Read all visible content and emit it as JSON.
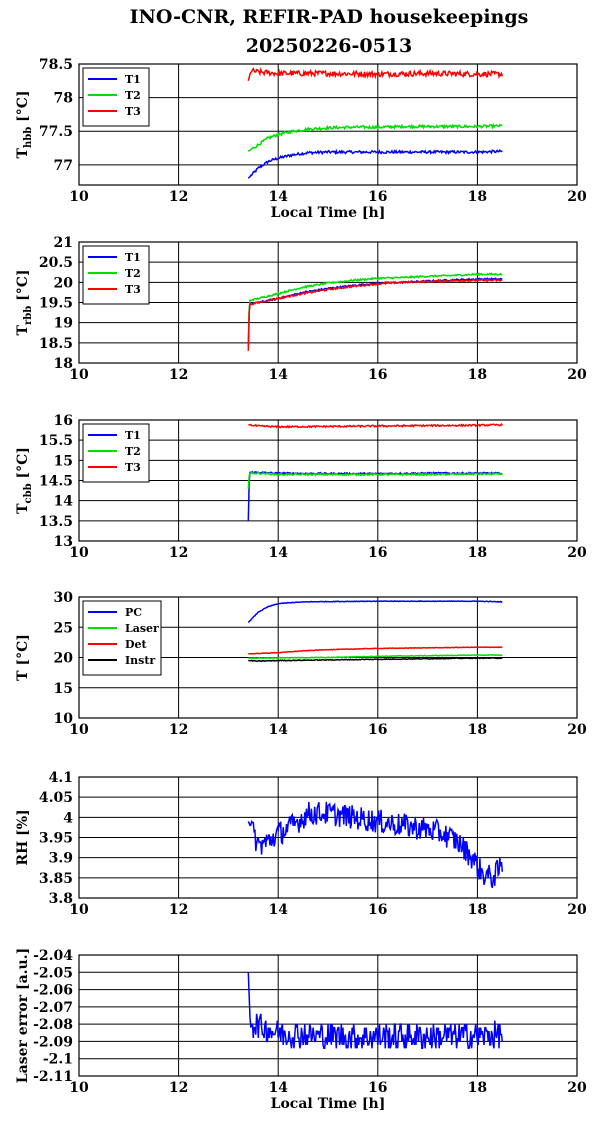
{
  "title_line1": "INO-CNR, REFIR-PAD housekeepings",
  "title_line2": "20250226-0513",
  "chart_data": [
    {
      "type": "line",
      "ylabel_main": "T",
      "ylabel_sub": "hbb",
      "ylabel_unit": " [°C]",
      "xlabel": "Local Time [h]",
      "xlim": [
        10,
        20
      ],
      "ylim": [
        76.7,
        78.5
      ],
      "xticks": [
        "10",
        "12",
        "14",
        "16",
        "18",
        "20"
      ],
      "yticks": [
        "77",
        "77.5",
        "78",
        "78.5"
      ],
      "ytick_values": [
        77,
        77.5,
        78,
        78.5
      ],
      "legend": "top-left",
      "series": [
        {
          "name": "T1",
          "color": "#0000ff",
          "x": [
            13.4,
            13.6,
            13.8,
            14.0,
            14.3,
            14.6,
            15.0,
            15.5,
            16.0,
            16.5,
            17.0,
            17.5,
            18.0,
            18.5
          ],
          "values": [
            76.8,
            76.95,
            77.05,
            77.1,
            77.15,
            77.18,
            77.19,
            77.19,
            77.19,
            77.19,
            77.19,
            77.19,
            77.19,
            77.2
          ],
          "noise": 0.02
        },
        {
          "name": "T2",
          "color": "#00dd00",
          "x": [
            13.4,
            13.6,
            13.8,
            14.0,
            14.3,
            14.6,
            15.0,
            15.5,
            16.0,
            16.5,
            17.0,
            17.5,
            18.0,
            18.5
          ],
          "values": [
            77.2,
            77.3,
            77.4,
            77.45,
            77.5,
            77.53,
            77.55,
            77.56,
            77.56,
            77.57,
            77.57,
            77.57,
            77.57,
            77.58
          ],
          "noise": 0.02
        },
        {
          "name": "T3",
          "color": "#ff0000",
          "x": [
            13.4,
            13.45,
            13.6,
            14.0,
            15.0,
            16.0,
            17.0,
            18.0,
            18.5
          ],
          "values": [
            78.25,
            78.4,
            78.38,
            78.36,
            78.36,
            78.35,
            78.36,
            78.35,
            78.35
          ],
          "noise": 0.04
        }
      ]
    },
    {
      "type": "line",
      "ylabel_main": "T",
      "ylabel_sub": "rbb",
      "ylabel_unit": " [°C]",
      "xlabel": "",
      "xlim": [
        10,
        20
      ],
      "ylim": [
        18,
        21
      ],
      "xticks": [
        "10",
        "12",
        "14",
        "16",
        "18",
        "20"
      ],
      "yticks": [
        "18",
        "18.5",
        "19",
        "19.5",
        "20",
        "20.5",
        "21"
      ],
      "ytick_values": [
        18,
        18.5,
        19,
        19.5,
        20,
        20.5,
        21
      ],
      "legend": "top-left",
      "series": [
        {
          "name": "T1",
          "color": "#0000ff",
          "x": [
            13.4,
            13.42,
            13.6,
            14.0,
            14.5,
            15.0,
            15.5,
            16.0,
            16.5,
            17.0,
            17.5,
            18.0,
            18.5
          ],
          "values": [
            18.4,
            19.45,
            19.5,
            19.6,
            19.75,
            19.85,
            19.92,
            19.98,
            20.0,
            20.03,
            20.06,
            20.08,
            20.08
          ],
          "noise": 0.02
        },
        {
          "name": "T2",
          "color": "#00dd00",
          "x": [
            13.4,
            13.42,
            13.6,
            14.0,
            14.5,
            15.0,
            15.5,
            16.0,
            16.5,
            17.0,
            17.5,
            18.0,
            18.5
          ],
          "values": [
            18.4,
            19.55,
            19.6,
            19.72,
            19.88,
            19.98,
            20.05,
            20.1,
            20.12,
            20.15,
            20.17,
            20.2,
            20.2
          ],
          "noise": 0.02
        },
        {
          "name": "T3",
          "color": "#ff0000",
          "x": [
            13.4,
            13.42,
            13.6,
            14.0,
            14.5,
            15.0,
            15.5,
            16.0,
            16.5,
            17.0,
            17.5,
            18.0,
            18.5
          ],
          "values": [
            18.3,
            19.45,
            19.5,
            19.6,
            19.72,
            19.82,
            19.9,
            19.96,
            20.0,
            20.02,
            20.04,
            20.05,
            20.05
          ],
          "noise": 0.02
        }
      ]
    },
    {
      "type": "line",
      "ylabel_main": "T",
      "ylabel_sub": "cbb",
      "ylabel_unit": " [°C]",
      "xlabel": "",
      "xlim": [
        10,
        20
      ],
      "ylim": [
        13,
        16
      ],
      "xticks": [
        "10",
        "12",
        "14",
        "16",
        "18",
        "20"
      ],
      "yticks": [
        "13",
        "13.5",
        "14",
        "14.5",
        "15",
        "15.5",
        "16"
      ],
      "ytick_values": [
        13,
        13.5,
        14,
        14.5,
        15,
        15.5,
        16
      ],
      "legend": "top-left",
      "series": [
        {
          "name": "T1",
          "color": "#0000ff",
          "x": [
            13.4,
            13.42,
            13.6,
            14.0,
            15.0,
            16.0,
            17.0,
            18.0,
            18.5
          ],
          "values": [
            13.5,
            14.7,
            14.7,
            14.68,
            14.67,
            14.67,
            14.68,
            14.68,
            14.68
          ],
          "noise": 0.02
        },
        {
          "name": "T2",
          "color": "#00dd00",
          "x": [
            13.4,
            13.42,
            13.6,
            14.0,
            15.0,
            16.0,
            17.0,
            18.0,
            18.5
          ],
          "values": [
            14.3,
            14.68,
            14.68,
            14.65,
            14.65,
            14.65,
            14.65,
            14.66,
            14.66
          ],
          "noise": 0.02
        },
        {
          "name": "T3",
          "color": "#ff0000",
          "x": [
            13.4,
            13.6,
            14.0,
            15.0,
            16.0,
            17.0,
            18.0,
            18.5
          ],
          "values": [
            15.88,
            15.85,
            15.83,
            15.84,
            15.85,
            15.86,
            15.87,
            15.88
          ],
          "noise": 0.02
        }
      ]
    },
    {
      "type": "line",
      "ylabel_main": "T [°C]",
      "ylabel_sub": "",
      "ylabel_unit": "",
      "xlabel": "",
      "xlim": [
        10,
        20
      ],
      "ylim": [
        10,
        30
      ],
      "xticks": [
        "10",
        "12",
        "14",
        "16",
        "18",
        "20"
      ],
      "yticks": [
        "10",
        "15",
        "20",
        "25",
        "30"
      ],
      "ytick_values": [
        10,
        15,
        20,
        25,
        30
      ],
      "legend": "top-left",
      "series": [
        {
          "name": "PC",
          "color": "#0000ff",
          "x": [
            13.4,
            13.6,
            13.8,
            14.0,
            14.3,
            14.6,
            15.0,
            16.0,
            17.0,
            18.0,
            18.5
          ],
          "values": [
            25.8,
            27.5,
            28.4,
            28.9,
            29.1,
            29.2,
            29.25,
            29.3,
            29.3,
            29.3,
            29.2
          ],
          "noise": 0.05
        },
        {
          "name": "Laser",
          "color": "#00dd00",
          "x": [
            13.4,
            14.0,
            15.0,
            16.0,
            17.0,
            18.0,
            18.5
          ],
          "values": [
            19.9,
            19.95,
            20.0,
            20.2,
            20.3,
            20.4,
            20.4
          ],
          "noise": 0.05
        },
        {
          "name": "Det",
          "color": "#ff0000",
          "x": [
            13.4,
            14.0,
            14.5,
            15.0,
            16.0,
            17.0,
            18.0,
            18.5
          ],
          "values": [
            20.6,
            20.8,
            21.1,
            21.3,
            21.5,
            21.6,
            21.7,
            21.7
          ],
          "noise": 0.04
        },
        {
          "name": "Instr",
          "color": "#000000",
          "x": [
            13.4,
            13.6,
            14.0,
            15.0,
            16.0,
            17.0,
            18.0,
            18.5
          ],
          "values": [
            19.5,
            19.4,
            19.5,
            19.6,
            19.7,
            19.8,
            19.9,
            19.9
          ],
          "noise": 0.06
        }
      ]
    },
    {
      "type": "line",
      "ylabel_main": "RH [%]",
      "ylabel_sub": "",
      "ylabel_unit": "",
      "xlabel": "",
      "xlim": [
        10,
        20
      ],
      "ylim": [
        3.8,
        4.1
      ],
      "xticks": [
        "10",
        "12",
        "14",
        "16",
        "18",
        "20"
      ],
      "yticks": [
        "3.8",
        "3.85",
        "3.9",
        "3.95",
        "4",
        "4.05",
        "4.1"
      ],
      "ytick_values": [
        3.8,
        3.85,
        3.9,
        3.95,
        4.0,
        4.05,
        4.1
      ],
      "legend": "none",
      "series": [
        {
          "name": "",
          "color": "#0000ff",
          "x": [
            13.4,
            13.6,
            13.8,
            14.0,
            14.3,
            14.6,
            15.0,
            15.5,
            16.0,
            16.5,
            17.0,
            17.3,
            17.6,
            17.9,
            18.1,
            18.3,
            18.5
          ],
          "values": [
            3.99,
            3.93,
            3.94,
            3.96,
            3.98,
            4.01,
            4.01,
            4.0,
            3.99,
            3.98,
            3.97,
            3.96,
            3.94,
            3.9,
            3.86,
            3.85,
            3.88
          ],
          "noise": 0.03
        }
      ]
    },
    {
      "type": "line",
      "ylabel_main": "Laser error [a.u.]",
      "ylabel_sub": "",
      "ylabel_unit": "",
      "xlabel": "Local Time [h]",
      "xlim": [
        10,
        20
      ],
      "ylim": [
        -2.11,
        -2.04
      ],
      "xticks": [
        "10",
        "12",
        "14",
        "16",
        "18",
        "20"
      ],
      "yticks": [
        "-2.11",
        "-2.1",
        "-2.09",
        "-2.08",
        "-2.07",
        "-2.06",
        "-2.05",
        "-2.04"
      ],
      "ytick_values": [
        -2.11,
        -2.1,
        -2.09,
        -2.08,
        -2.07,
        -2.06,
        -2.05,
        -2.04
      ],
      "legend": "none",
      "series": [
        {
          "name": "",
          "color": "#0000ff",
          "x": [
            13.4,
            13.43,
            13.5,
            14.0,
            15.0,
            16.0,
            17.0,
            18.0,
            18.5
          ],
          "values": [
            -2.05,
            -2.075,
            -2.08,
            -2.085,
            -2.087,
            -2.087,
            -2.087,
            -2.087,
            -2.086
          ],
          "noise": 0.008,
          "quant": 0.002
        }
      ]
    }
  ]
}
